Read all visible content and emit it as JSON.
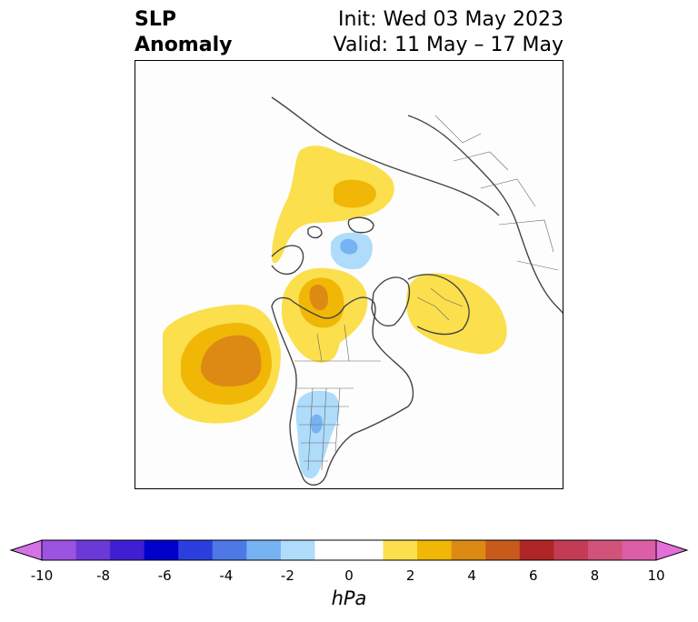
{
  "header": {
    "title_line1": "SLP",
    "title_line2": "Anomaly",
    "init_text": "Init: Wed 03 May 2023",
    "valid_text": "Valid: 11 May – 17 May"
  },
  "map": {
    "field": "sea-level pressure anomaly",
    "features": [
      {
        "sign": "positive",
        "max_hpa": 4,
        "region": "northeast Pacific / Gulf of Alaska"
      },
      {
        "sign": "positive",
        "max_hpa": 3,
        "region": "northern Canada / Hudson Bay"
      },
      {
        "sign": "positive",
        "max_hpa": 2,
        "region": "Scandinavia / Barents Sea"
      },
      {
        "sign": "positive",
        "max_hpa": 2,
        "region": "northern Siberia"
      },
      {
        "sign": "negative",
        "min_hpa": -2,
        "region": "central Arctic Ocean"
      },
      {
        "sign": "negative",
        "min_hpa": -2,
        "region": "central United States"
      }
    ]
  },
  "colorbar": {
    "unit": "hPa",
    "colors": [
      "#d572e8",
      "#9c53e1",
      "#6b39d8",
      "#3e1fd4",
      "#0000cc",
      "#2a3fdd",
      "#4d78e6",
      "#77b2f3",
      "#aedcfa",
      "#ffffff",
      "#ffffff",
      "#fbdf4d",
      "#f0b707",
      "#dc8a14",
      "#c75a1b",
      "#b02525",
      "#c33b55",
      "#d1537a",
      "#db5ea6",
      "#e56fd8"
    ],
    "ticks": [
      "-10",
      "-8",
      "-6",
      "-4",
      "-2",
      "0",
      "2",
      "4",
      "6",
      "8",
      "10"
    ]
  }
}
